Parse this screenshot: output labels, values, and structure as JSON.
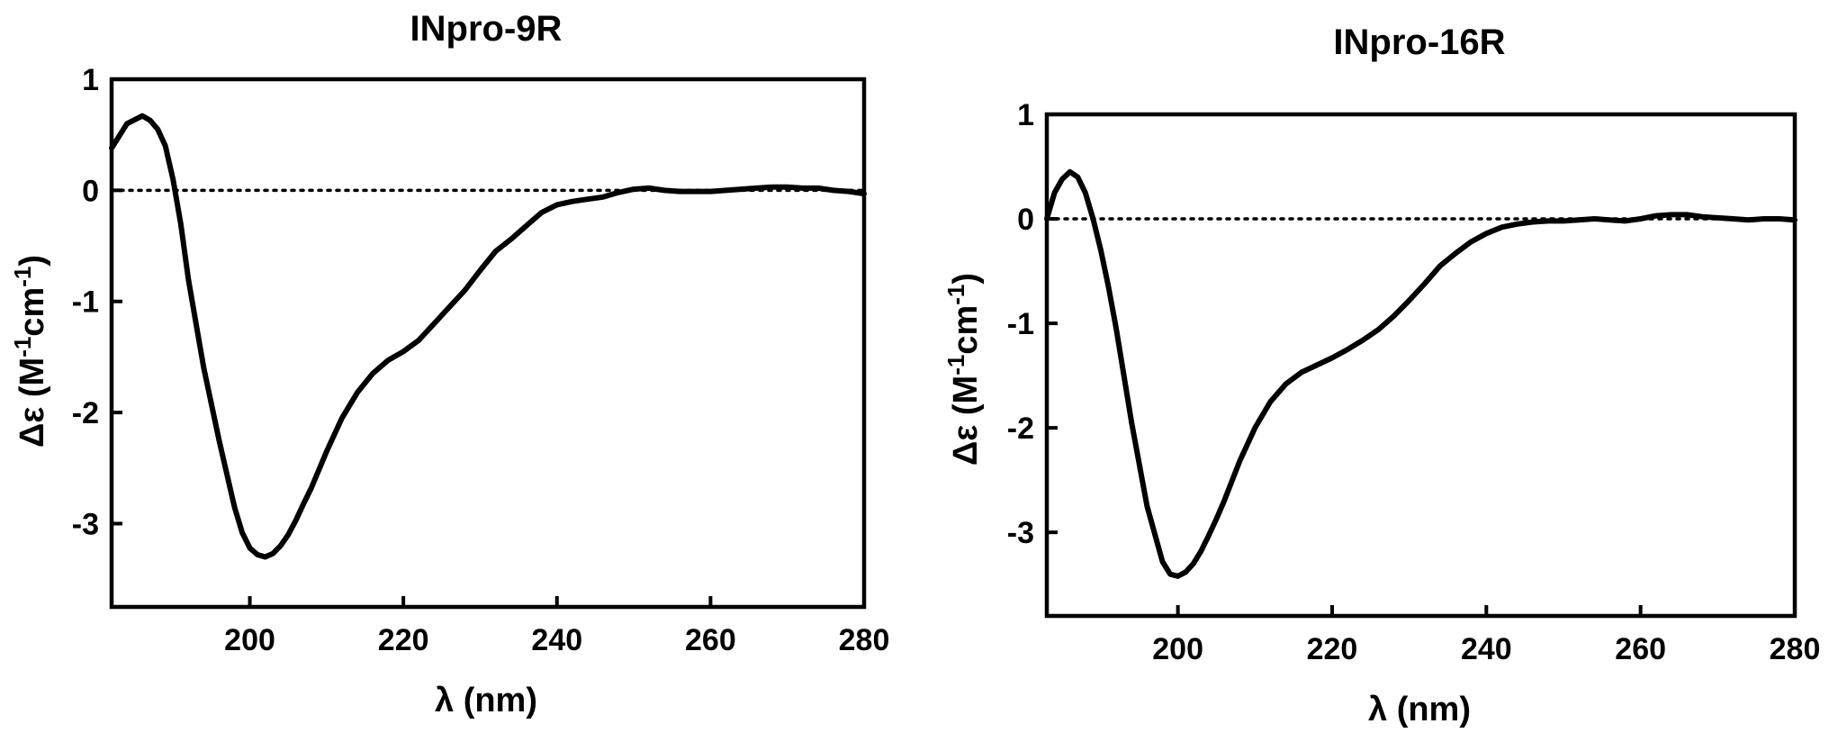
{
  "chart_data": [
    {
      "type": "line",
      "title": "INpro-9R",
      "xlabel": "λ (nm)",
      "ylabel": "Δε (M-1cm-1)",
      "ylabel_parts": {
        "prefix": "Δε (M",
        "sup1": "-1",
        "mid": "cm",
        "sup2": "-1",
        "suffix": ")"
      },
      "xlim": [
        182,
        280
      ],
      "ylim": [
        -3.75,
        1
      ],
      "x_ticks": [
        200,
        220,
        240,
        260,
        280
      ],
      "x_tick_labels": [
        "200",
        "220",
        "240",
        "260",
        "280"
      ],
      "y_ticks": [
        1,
        0,
        -1,
        -2,
        -3
      ],
      "y_tick_labels": [
        "1",
        "0",
        "-1",
        "-2",
        "-3"
      ],
      "zero_line": "dotted",
      "grid": false,
      "series": [
        {
          "color": "#000000",
          "x": [
            182,
            184,
            186,
            187,
            188,
            189,
            190,
            191,
            192,
            193,
            194,
            196,
            198,
            199,
            200,
            201,
            202,
            203,
            204,
            205,
            206,
            207,
            208,
            210,
            212,
            214,
            216,
            218,
            220,
            222,
            224,
            226,
            228,
            230,
            232,
            234,
            236,
            238,
            240,
            242,
            244,
            246,
            248,
            250,
            252,
            254,
            256,
            258,
            260,
            262,
            264,
            266,
            268,
            270,
            272,
            274,
            276,
            278,
            280
          ],
          "y": [
            0.38,
            0.6,
            0.67,
            0.63,
            0.55,
            0.4,
            0.1,
            -0.3,
            -0.8,
            -1.2,
            -1.6,
            -2.25,
            -2.85,
            -3.08,
            -3.22,
            -3.28,
            -3.3,
            -3.27,
            -3.2,
            -3.1,
            -2.97,
            -2.82,
            -2.68,
            -2.35,
            -2.05,
            -1.82,
            -1.65,
            -1.53,
            -1.45,
            -1.35,
            -1.2,
            -1.05,
            -0.9,
            -0.72,
            -0.55,
            -0.44,
            -0.32,
            -0.2,
            -0.13,
            -0.1,
            -0.08,
            -0.06,
            -0.02,
            0.01,
            0.02,
            0.0,
            -0.01,
            -0.01,
            -0.01,
            0.0,
            0.01,
            0.02,
            0.03,
            0.03,
            0.02,
            0.02,
            0.0,
            -0.01,
            -0.03
          ]
        }
      ]
    },
    {
      "type": "line",
      "title": "INpro-16R",
      "xlabel": "λ (nm)",
      "ylabel": "Δε (M-1cm-1)",
      "ylabel_parts": {
        "prefix": "Δε (M",
        "sup1": "-1",
        "mid": "cm",
        "sup2": "-1",
        "suffix": ")"
      },
      "xlim": [
        183,
        280
      ],
      "ylim": [
        -3.8,
        1
      ],
      "x_ticks": [
        200,
        220,
        240,
        260,
        280
      ],
      "x_tick_labels": [
        "200",
        "220",
        "240",
        "260",
        "280"
      ],
      "y_ticks": [
        1,
        0,
        -1,
        -2,
        -3
      ],
      "y_tick_labels": [
        "1",
        "0",
        "-1",
        "-2",
        "-3"
      ],
      "zero_line": "dotted",
      "grid": false,
      "series": [
        {
          "color": "#000000",
          "x": [
            183,
            184,
            185,
            186,
            187,
            188,
            189,
            190,
            191,
            192,
            194,
            196,
            198,
            199,
            200,
            201,
            202,
            203,
            204,
            205,
            206,
            208,
            210,
            212,
            214,
            216,
            218,
            220,
            222,
            224,
            226,
            228,
            230,
            232,
            234,
            236,
            238,
            240,
            242,
            244,
            246,
            248,
            250,
            252,
            254,
            256,
            258,
            260,
            262,
            264,
            266,
            268,
            270,
            272,
            274,
            276,
            278,
            280
          ],
          "y": [
            0.0,
            0.25,
            0.38,
            0.45,
            0.4,
            0.25,
            0.0,
            -0.3,
            -0.65,
            -1.05,
            -1.95,
            -2.75,
            -3.28,
            -3.4,
            -3.42,
            -3.38,
            -3.3,
            -3.18,
            -3.03,
            -2.87,
            -2.7,
            -2.32,
            -2.0,
            -1.75,
            -1.58,
            -1.47,
            -1.4,
            -1.33,
            -1.25,
            -1.16,
            -1.06,
            -0.93,
            -0.78,
            -0.62,
            -0.45,
            -0.33,
            -0.22,
            -0.14,
            -0.08,
            -0.05,
            -0.03,
            -0.02,
            -0.02,
            -0.01,
            0.0,
            -0.01,
            -0.02,
            0.0,
            0.03,
            0.04,
            0.04,
            0.02,
            0.01,
            0.0,
            -0.01,
            0.0,
            0.0,
            -0.01
          ]
        }
      ]
    }
  ]
}
